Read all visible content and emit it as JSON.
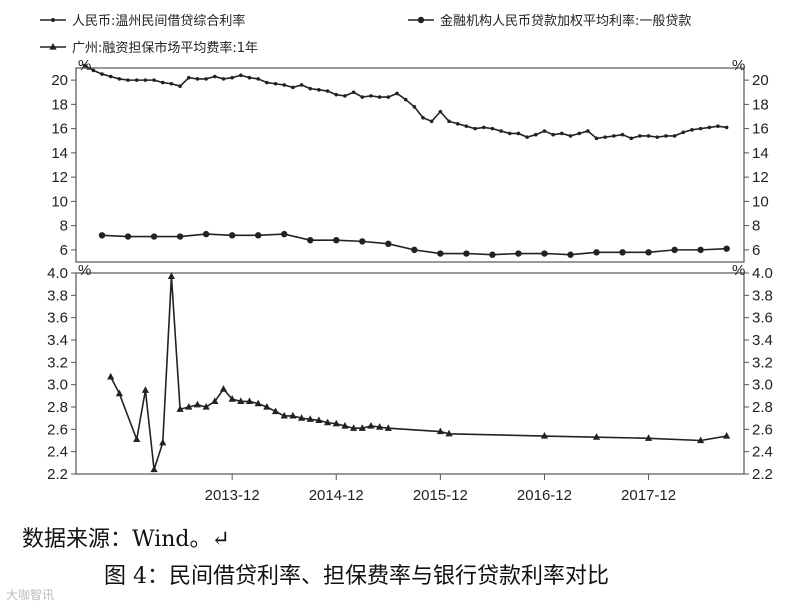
{
  "chart_data": {
    "type": "line",
    "legend": [
      {
        "label": "人民币:温州民间借贷综合利率",
        "series": "wenzhou"
      },
      {
        "label": "金融机构人民币贷款加权平均利率:一般贷款",
        "series": "loan"
      },
      {
        "label": "广州:融资担保市场平均费率:1年",
        "series": "guarantee"
      }
    ],
    "top_panel": {
      "unit": "%",
      "ylim": [
        5,
        21
      ],
      "yticks": [
        "20",
        "18",
        "16",
        "14",
        "12",
        "10",
        "8",
        "6"
      ],
      "series": [
        {
          "name": "人民币:温州民间借贷综合利率",
          "marker": "dot",
          "x": [
            "2012-07",
            "2012-08",
            "2012-09",
            "2012-10",
            "2012-11",
            "2012-12",
            "2013-01",
            "2013-02",
            "2013-03",
            "2013-04",
            "2013-05",
            "2013-06",
            "2013-07",
            "2013-08",
            "2013-09",
            "2013-10",
            "2013-11",
            "2013-12",
            "2014-01",
            "2014-02",
            "2014-03",
            "2014-04",
            "2014-05",
            "2014-06",
            "2014-07",
            "2014-08",
            "2014-09",
            "2014-10",
            "2014-11",
            "2014-12",
            "2015-01",
            "2015-02",
            "2015-03",
            "2015-04",
            "2015-05",
            "2015-06",
            "2015-07",
            "2015-08",
            "2015-09",
            "2015-10",
            "2015-11",
            "2015-12",
            "2016-01",
            "2016-02",
            "2016-03",
            "2016-04",
            "2016-05",
            "2016-06",
            "2016-07",
            "2016-08",
            "2016-09",
            "2016-10",
            "2016-11",
            "2016-12",
            "2017-01",
            "2017-02",
            "2017-03",
            "2017-04",
            "2017-05",
            "2017-06",
            "2017-07",
            "2017-08",
            "2017-09",
            "2017-10",
            "2017-11",
            "2017-12",
            "2018-01",
            "2018-02",
            "2018-03",
            "2018-04",
            "2018-05",
            "2018-06",
            "2018-07",
            "2018-08",
            "2018-09"
          ],
          "values": [
            21.2,
            20.8,
            20.5,
            20.3,
            20.1,
            20.0,
            20.0,
            20.0,
            20.0,
            19.8,
            19.7,
            19.5,
            20.2,
            20.1,
            20.1,
            20.3,
            20.1,
            20.2,
            20.4,
            20.2,
            20.1,
            19.8,
            19.7,
            19.6,
            19.4,
            19.6,
            19.3,
            19.2,
            19.1,
            18.8,
            18.7,
            19.0,
            18.6,
            18.7,
            18.6,
            18.6,
            18.9,
            18.4,
            17.8,
            16.9,
            16.6,
            17.4,
            16.6,
            16.4,
            16.2,
            16.0,
            16.1,
            16.0,
            15.8,
            15.6,
            15.6,
            15.3,
            15.5,
            15.8,
            15.5,
            15.6,
            15.4,
            15.6,
            15.8,
            15.2,
            15.3,
            15.4,
            15.5,
            15.2,
            15.4,
            15.4,
            15.3,
            15.4,
            15.4,
            15.7,
            15.9,
            16.0,
            16.1,
            16.2,
            16.1
          ]
        },
        {
          "name": "金融机构人民币贷款加权平均利率:一般贷款",
          "marker": "circle",
          "x": [
            "2012-09",
            "2012-12",
            "2013-03",
            "2013-06",
            "2013-09",
            "2013-12",
            "2014-03",
            "2014-06",
            "2014-09",
            "2014-12",
            "2015-03",
            "2015-06",
            "2015-09",
            "2015-12",
            "2016-03",
            "2016-06",
            "2016-09",
            "2016-12",
            "2017-03",
            "2017-06",
            "2017-09",
            "2017-12",
            "2018-03",
            "2018-06",
            "2018-09"
          ],
          "values": [
            7.2,
            7.1,
            7.1,
            7.1,
            7.3,
            7.2,
            7.2,
            7.3,
            6.8,
            6.8,
            6.7,
            6.5,
            6.0,
            5.7,
            5.7,
            5.6,
            5.7,
            5.7,
            5.6,
            5.8,
            5.8,
            5.8,
            6.0,
            6.0,
            6.1
          ]
        }
      ]
    },
    "bottom_panel": {
      "unit": "%",
      "ylim": [
        2.2,
        4.0
      ],
      "yticks": [
        "4.0",
        "3.8",
        "3.6",
        "3.4",
        "3.2",
        "3.0",
        "2.8",
        "2.6",
        "2.4",
        "2.2"
      ],
      "series": [
        {
          "name": "广州:融资担保市场平均费率:1年",
          "marker": "triangle",
          "x": [
            "2012-10",
            "2012-11",
            "2013-01",
            "2013-02",
            "2013-03",
            "2013-04",
            "2013-05",
            "2013-06",
            "2013-07",
            "2013-08",
            "2013-09",
            "2013-10",
            "2013-11",
            "2013-12",
            "2014-01",
            "2014-02",
            "2014-03",
            "2014-04",
            "2014-05",
            "2014-06",
            "2014-07",
            "2014-08",
            "2014-09",
            "2014-10",
            "2014-11",
            "2014-12",
            "2015-01",
            "2015-02",
            "2015-03",
            "2015-04",
            "2015-05",
            "2015-06",
            "2015-12",
            "2016-01",
            "2016-12",
            "2017-06",
            "2017-12",
            "2018-06",
            "2018-09"
          ],
          "values": [
            3.07,
            2.92,
            2.51,
            2.95,
            2.24,
            2.48,
            3.97,
            2.78,
            2.8,
            2.82,
            2.8,
            2.85,
            2.96,
            2.87,
            2.85,
            2.85,
            2.83,
            2.8,
            2.76,
            2.72,
            2.72,
            2.7,
            2.69,
            2.68,
            2.66,
            2.65,
            2.63,
            2.61,
            2.61,
            2.63,
            2.62,
            2.61,
            2.58,
            2.56,
            2.54,
            2.53,
            2.52,
            2.5,
            2.54
          ]
        }
      ]
    },
    "xlim": [
      "2012-06",
      "2018-11"
    ],
    "xticks": [
      "2013-12",
      "2014-12",
      "2015-12",
      "2016-12",
      "2017-12"
    ],
    "grid": false,
    "legend_position": "top"
  },
  "source_text": "数据来源：Wind。↵",
  "caption": "图 4：民间借贷利率、担保费率与银行贷款利率对比",
  "footer_mark": "大咖智讯",
  "colors": {
    "line": "#222222",
    "frame": "#555555"
  }
}
